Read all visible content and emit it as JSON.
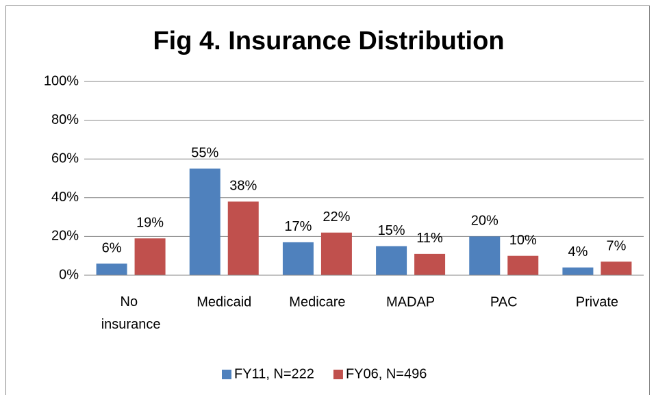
{
  "chart_data": {
    "type": "bar",
    "title": "Fig 4. Insurance Distribution",
    "categories": [
      "No insurance",
      "Medicaid",
      "Medicare",
      "MADAP",
      "PAC",
      "Private"
    ],
    "series": [
      {
        "name": "FY11, N=222",
        "color": "#4f81bd",
        "values": [
          6,
          55,
          17,
          15,
          20,
          4
        ],
        "value_labels": [
          "6%",
          "55%",
          "17%",
          "15%",
          "20%",
          "4%"
        ]
      },
      {
        "name": "FY06, N=496",
        "color": "#c0504d",
        "values": [
          19,
          38,
          22,
          11,
          10,
          7
        ],
        "value_labels": [
          "19%",
          "38%",
          "22%",
          "11%",
          "10%",
          "7%"
        ]
      }
    ],
    "ylim": [
      0,
      100
    ],
    "yticks": [
      {
        "value": 0,
        "label": "0%"
      },
      {
        "value": 20,
        "label": "20%"
      },
      {
        "value": 40,
        "label": "40%"
      },
      {
        "value": 60,
        "label": "60%"
      },
      {
        "value": 80,
        "label": "80%"
      },
      {
        "value": 100,
        "label": "100%"
      }
    ],
    "grid": true,
    "legend": "bottom"
  }
}
